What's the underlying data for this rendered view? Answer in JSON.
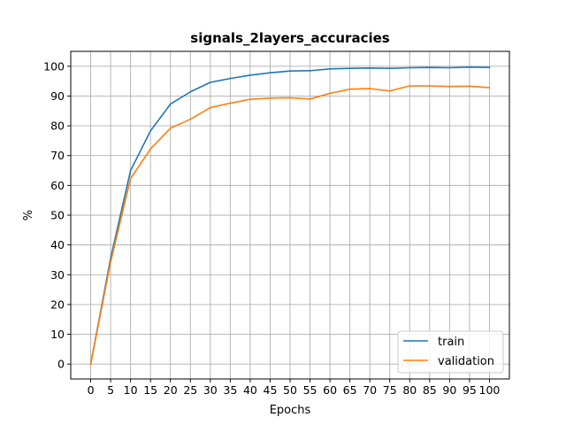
{
  "chart_data": {
    "type": "line",
    "title": "signals_2layers_accuracies",
    "xlabel": "Epochs",
    "ylabel": "%",
    "x": [
      0,
      5,
      10,
      15,
      20,
      25,
      30,
      35,
      40,
      45,
      50,
      55,
      60,
      65,
      70,
      75,
      80,
      85,
      90,
      95,
      100
    ],
    "xticks": [
      0,
      5,
      10,
      15,
      20,
      25,
      30,
      35,
      40,
      45,
      50,
      55,
      60,
      65,
      70,
      75,
      80,
      85,
      90,
      95,
      100
    ],
    "yticks": [
      0,
      10,
      20,
      30,
      40,
      50,
      60,
      70,
      80,
      90,
      100
    ],
    "xlim": [
      -5,
      105
    ],
    "ylim": [
      -5,
      105
    ],
    "grid": true,
    "legend_position": "lower-right",
    "series": [
      {
        "name": "train",
        "color": "#1f77b4",
        "values": [
          0,
          35.5,
          65.0,
          78.3,
          87.3,
          91.4,
          94.6,
          95.9,
          97.0,
          97.8,
          98.4,
          98.5,
          99.1,
          99.3,
          99.4,
          99.3,
          99.5,
          99.6,
          99.5,
          99.7,
          99.6
        ]
      },
      {
        "name": "validation",
        "color": "#ff7f0e",
        "values": [
          0,
          34.3,
          62.3,
          72.2,
          79.2,
          82.2,
          86.1,
          87.6,
          88.9,
          89.3,
          89.4,
          89.0,
          90.9,
          92.3,
          92.5,
          91.7,
          93.4,
          93.4,
          93.2,
          93.3,
          92.8
        ]
      }
    ]
  }
}
